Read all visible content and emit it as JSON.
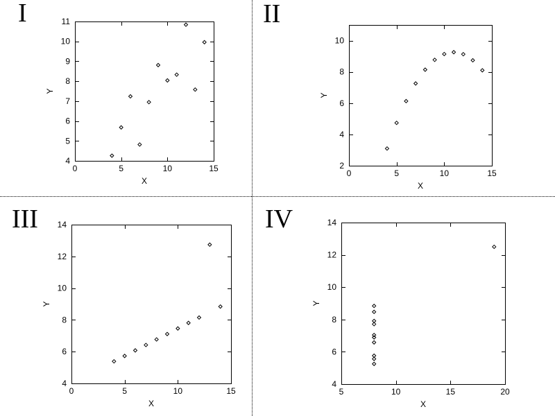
{
  "page": {
    "background": "#ffffff",
    "foreground": "#000000",
    "separator_style": "dotted"
  },
  "chart_data": [
    {
      "type": "scatter",
      "panel_label": "I",
      "title": "",
      "xlabel": "X",
      "ylabel": "Y",
      "xlim": [
        0,
        15
      ],
      "ylim": [
        4,
        11
      ],
      "xticks": [
        0,
        5,
        10,
        15
      ],
      "yticks": [
        4,
        5,
        6,
        7,
        8,
        9,
        10,
        11
      ],
      "grid": false,
      "legend": false,
      "marker": "open-diamond",
      "marker_color": "#000000",
      "points": [
        [
          10,
          8.04
        ],
        [
          8,
          6.95
        ],
        [
          13,
          7.58
        ],
        [
          9,
          8.81
        ],
        [
          11,
          8.33
        ],
        [
          14,
          9.96
        ],
        [
          6,
          7.24
        ],
        [
          4,
          4.26
        ],
        [
          12,
          10.84
        ],
        [
          7,
          4.82
        ],
        [
          5,
          5.68
        ]
      ]
    },
    {
      "type": "scatter",
      "panel_label": "II",
      "title": "",
      "xlabel": "X",
      "ylabel": "Y",
      "xlim": [
        0,
        15
      ],
      "ylim": [
        2,
        11
      ],
      "xticks": [
        0,
        5,
        10,
        15
      ],
      "yticks": [
        2,
        4,
        6,
        8,
        10
      ],
      "grid": false,
      "legend": false,
      "marker": "open-diamond",
      "marker_color": "#000000",
      "points": [
        [
          10,
          9.14
        ],
        [
          8,
          8.14
        ],
        [
          13,
          8.74
        ],
        [
          9,
          8.77
        ],
        [
          11,
          9.26
        ],
        [
          14,
          8.1
        ],
        [
          6,
          6.13
        ],
        [
          4,
          3.1
        ],
        [
          12,
          9.13
        ],
        [
          7,
          7.26
        ],
        [
          5,
          4.74
        ]
      ]
    },
    {
      "type": "scatter",
      "panel_label": "III",
      "title": "",
      "xlabel": "X",
      "ylabel": "Y",
      "xlim": [
        0,
        15
      ],
      "ylim": [
        4,
        14
      ],
      "xticks": [
        0,
        5,
        10,
        15
      ],
      "yticks": [
        4,
        6,
        8,
        10,
        12,
        14
      ],
      "grid": false,
      "legend": false,
      "marker": "open-diamond",
      "marker_color": "#000000",
      "points": [
        [
          10,
          7.46
        ],
        [
          8,
          6.77
        ],
        [
          13,
          12.74
        ],
        [
          9,
          7.11
        ],
        [
          11,
          7.81
        ],
        [
          14,
          8.84
        ],
        [
          6,
          6.08
        ],
        [
          4,
          5.39
        ],
        [
          12,
          8.15
        ],
        [
          7,
          6.42
        ],
        [
          5,
          5.73
        ]
      ]
    },
    {
      "type": "scatter",
      "panel_label": "IV",
      "title": "",
      "xlabel": "X",
      "ylabel": "Y",
      "xlim": [
        5,
        20
      ],
      "ylim": [
        4,
        14
      ],
      "xticks": [
        5,
        10,
        15,
        20
      ],
      "yticks": [
        4,
        6,
        8,
        10,
        12,
        14
      ],
      "grid": false,
      "legend": false,
      "marker": "open-diamond",
      "marker_color": "#000000",
      "points": [
        [
          8,
          6.58
        ],
        [
          8,
          5.76
        ],
        [
          8,
          7.71
        ],
        [
          8,
          8.84
        ],
        [
          8,
          8.47
        ],
        [
          8,
          7.04
        ],
        [
          8,
          5.25
        ],
        [
          19,
          12.5
        ],
        [
          8,
          5.56
        ],
        [
          8,
          7.91
        ],
        [
          8,
          6.89
        ]
      ]
    }
  ]
}
